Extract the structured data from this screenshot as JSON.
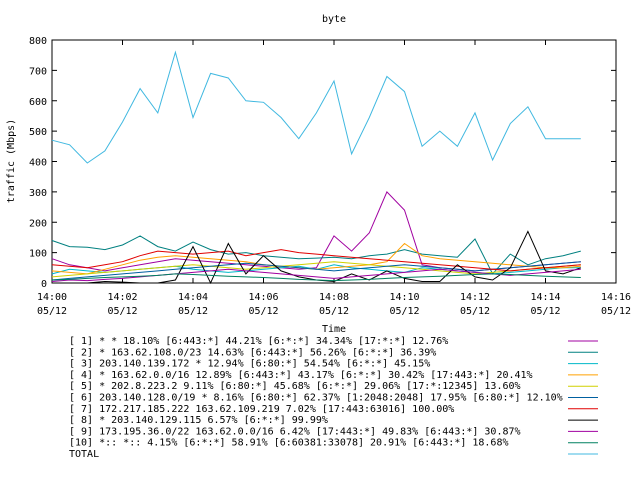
{
  "chart_data": {
    "type": "line",
    "title": "byte",
    "xlabel": "Time",
    "ylabel": "traffic (Mbps)",
    "ylim": [
      0,
      800
    ],
    "yticks": [
      0,
      100,
      200,
      300,
      400,
      500,
      600,
      700,
      800
    ],
    "xlim": [
      "14:00",
      "14:16"
    ],
    "xticks": [
      {
        "time": "14:00",
        "date": "05/12"
      },
      {
        "time": "14:02",
        "date": "05/12"
      },
      {
        "time": "14:04",
        "date": "05/12"
      },
      {
        "time": "14:06",
        "date": "05/12"
      },
      {
        "time": "14:08",
        "date": "05/12"
      },
      {
        "time": "14:10",
        "date": "05/12"
      },
      {
        "time": "14:12",
        "date": "05/12"
      },
      {
        "time": "14:14",
        "date": "05/12"
      },
      {
        "time": "14:16",
        "date": "05/12"
      }
    ],
    "x": [
      "14:00",
      "14:00:30",
      "14:01",
      "14:01:30",
      "14:02",
      "14:02:30",
      "14:03",
      "14:03:30",
      "14:04",
      "14:04:30",
      "14:05",
      "14:05:30",
      "14:06",
      "14:06:30",
      "14:07",
      "14:07:30",
      "14:08",
      "14:08:30",
      "14:09",
      "14:09:30",
      "14:10",
      "14:10:30",
      "14:11",
      "14:11:30",
      "14:12",
      "14:12:30",
      "14:13",
      "14:13:30",
      "14:14",
      "14:14:30",
      "14:15"
    ],
    "series": [
      {
        "name": "[ 1] * * 18.10%  [6:443:*] 44.21% [6:*:*] 34.34% [17:*:*] 12.76%",
        "color": "#a000a0",
        "values": [
          80,
          60,
          50,
          40,
          50,
          60,
          70,
          80,
          75,
          70,
          65,
          60,
          55,
          50,
          45,
          50,
          155,
          105,
          165,
          300,
          240,
          60,
          50,
          45,
          40,
          45,
          50,
          55,
          60,
          65,
          70
        ]
      },
      {
        "name": "[ 2] * 163.62.108.0/23 14.63%  [6:443:*] 56.26% [6:*:*] 36.39%",
        "color": "#008080",
        "values": [
          140,
          120,
          118,
          110,
          125,
          155,
          120,
          105,
          135,
          110,
          95,
          100,
          90,
          85,
          80,
          82,
          85,
          80,
          90,
          95,
          110,
          95,
          90,
          85,
          145,
          30,
          95,
          60,
          80,
          90,
          105
        ]
      },
      {
        "name": "[ 3] 203.140.139.172 * 12.94%  [6:80:*] 54.54% [6:*:*] 45.15%",
        "color": "#00b8c8",
        "values": [
          30,
          45,
          40,
          35,
          40,
          45,
          50,
          55,
          45,
          40,
          35,
          40,
          45,
          50,
          55,
          45,
          60,
          50,
          45,
          40,
          35,
          50,
          45,
          40,
          35,
          30,
          35,
          40,
          45,
          50,
          50
        ]
      },
      {
        "name": "[ 4] * 163.62.0.0/16 12.89%  [6:443:*] 43.17% [6:*:*] 30.42% [17:443:*] 20.41%",
        "color": "#ffa000",
        "values": [
          40,
          35,
          30,
          45,
          60,
          75,
          85,
          90,
          85,
          80,
          75,
          70,
          60,
          55,
          50,
          45,
          50,
          55,
          60,
          70,
          130,
          90,
          80,
          75,
          70,
          65,
          60,
          55,
          50,
          50,
          55
        ]
      },
      {
        "name": "[ 5] * 202.8.223.2 9.11%  [6:80:*] 45.68% [6:*:*] 29.06% [17:*:12345] 13.60%",
        "color": "#d0d000",
        "values": [
          20,
          25,
          30,
          35,
          40,
          45,
          50,
          55,
          60,
          55,
          50,
          45,
          50,
          55,
          60,
          65,
          70,
          65,
          60,
          55,
          50,
          45,
          40,
          35,
          30,
          35,
          40,
          45,
          50,
          55,
          60
        ]
      },
      {
        "name": "[ 6] 203.140.128.0/19 * 8.16%  [6:80:*] 62.37% [1:2048:2048] 17.95% [6:80:*] 12.10%",
        "color": "#0060a0",
        "values": [
          10,
          15,
          20,
          25,
          30,
          35,
          40,
          45,
          50,
          55,
          60,
          65,
          60,
          55,
          50,
          45,
          40,
          45,
          50,
          55,
          60,
          55,
          50,
          45,
          40,
          45,
          50,
          55,
          60,
          65,
          70
        ]
      },
      {
        "name": "[ 7] 172.217.185.222 163.62.109.219 7.02%  [17:443:63016] 100.00%",
        "color": "#e00000",
        "values": [
          60,
          55,
          50,
          60,
          70,
          90,
          105,
          100,
          95,
          100,
          105,
          90,
          100,
          110,
          100,
          95,
          90,
          85,
          80,
          75,
          70,
          65,
          60,
          55,
          50,
          45,
          40,
          45,
          50,
          55,
          60
        ]
      },
      {
        "name": "[ 8] * 203.140.129.115 6.57%  [6:*:*] 99.99%",
        "color": "#000000",
        "values": [
          0,
          0,
          0,
          5,
          3,
          0,
          0,
          10,
          120,
          0,
          130,
          30,
          90,
          40,
          20,
          10,
          5,
          30,
          10,
          40,
          15,
          5,
          5,
          60,
          20,
          10,
          50,
          170,
          40,
          30,
          50
        ]
      },
      {
        "name": "[ 9] 173.195.36.0/22 163.62.0.0/16 6.42%  [17:443:*] 49.83% [6:443:*] 30.87%",
        "color": "#a000a0",
        "values": [
          5,
          10,
          8,
          12,
          15,
          20,
          25,
          30,
          35,
          40,
          45,
          40,
          35,
          30,
          25,
          20,
          15,
          20,
          25,
          30,
          35,
          40,
          45,
          40,
          35,
          30,
          25,
          30,
          35,
          40,
          45
        ]
      },
      {
        "name": "[10] *:: *:: 4.15%  [6:*:*] 58.91% [6:60381:33078] 20.91% [6:443:*] 18.68%",
        "color": "#008060",
        "values": [
          10,
          12,
          15,
          18,
          20,
          22,
          25,
          30,
          28,
          25,
          22,
          20,
          18,
          15,
          12,
          10,
          8,
          10,
          12,
          15,
          18,
          20,
          22,
          25,
          28,
          30,
          28,
          25,
          22,
          20,
          18
        ]
      },
      {
        "name": "TOTAL",
        "color": "#40b8e0",
        "values": [
          470,
          455,
          395,
          435,
          530,
          640,
          560,
          760,
          545,
          690,
          675,
          600,
          595,
          545,
          475,
          560,
          665,
          425,
          545,
          680,
          630,
          450,
          500,
          450,
          560,
          405,
          525,
          580,
          475,
          475,
          475
        ]
      }
    ],
    "grid": false,
    "legend": "bottom"
  }
}
